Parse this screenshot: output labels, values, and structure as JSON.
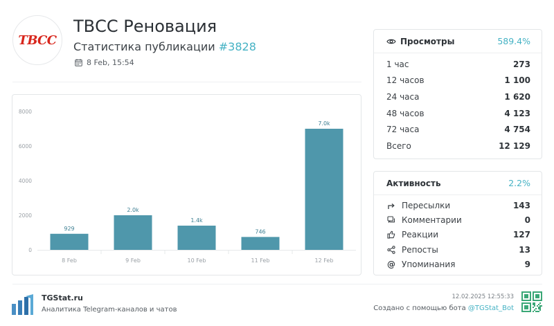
{
  "header": {
    "logo_text": "ТВСС",
    "title": "ТВСС Реновация",
    "subtitle_prefix": "Статистика публикации",
    "post_id": "#3828",
    "date": "8 Feb, 15:54",
    "date_icon": "calendar-icon"
  },
  "chart_data": {
    "type": "bar",
    "categories": [
      "8 Feb",
      "9 Feb",
      "10 Feb",
      "11 Feb",
      "12 Feb"
    ],
    "values": [
      929,
      2000,
      1400,
      746,
      7000
    ],
    "data_labels": [
      "929",
      "2.0k",
      "1.4k",
      "746",
      "7.0k"
    ],
    "ylim": [
      0,
      8000
    ],
    "yticks": [
      "0",
      "2000",
      "4000",
      "6000",
      "8000"
    ],
    "grid": false,
    "color": "#4f97ab"
  },
  "views": {
    "icon": "eye-icon",
    "label": "Просмотры",
    "percent": "589.4%",
    "rows": [
      {
        "label": "1 час",
        "value": "273"
      },
      {
        "label": "12 часов",
        "value": "1 100"
      },
      {
        "label": "24 часа",
        "value": "1 620"
      },
      {
        "label": "48 часов",
        "value": "4 123"
      },
      {
        "label": "72 часа",
        "value": "4 754"
      },
      {
        "label": "Всего",
        "value": "12 129"
      }
    ]
  },
  "activity": {
    "label": "Активность",
    "percent": "2.2%",
    "rows": [
      {
        "icon": "forward-icon",
        "label": "Пересылки",
        "value": "143"
      },
      {
        "icon": "comment-icon",
        "label": "Комментарии",
        "value": "0"
      },
      {
        "icon": "thumbs-up-icon",
        "label": "Реакции",
        "value": "127"
      },
      {
        "icon": "share-icon",
        "label": "Репосты",
        "value": "13"
      },
      {
        "icon": "at-icon",
        "label": "Упоминания",
        "value": "9"
      }
    ]
  },
  "footer": {
    "brand": "TGStat.ru",
    "description": "Аналитика Telegram-каналов и чатов",
    "timestamp": "12.02.2025 12:55:33",
    "made_by_prefix": "Создано с помощью бота",
    "bot_name": "@TGStat_Bot"
  },
  "colors": {
    "accent": "#45b2c4",
    "bar": "#4f97ab",
    "logo_red": "#d8261c"
  }
}
